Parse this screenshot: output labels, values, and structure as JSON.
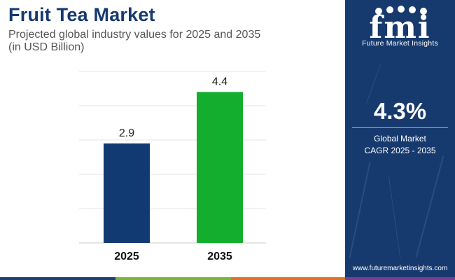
{
  "header": {
    "title": "Fruit Tea Market",
    "subtitle_line1": "Projected global industry values for 2025 and 2035",
    "subtitle_line2": "(in USD Billion)"
  },
  "chart_data": {
    "type": "bar",
    "categories": [
      "2025",
      "2035"
    ],
    "values": [
      2.9,
      4.4
    ],
    "bar_colors": [
      "#123a72",
      "#13ae2e"
    ],
    "ylim": [
      0,
      5
    ],
    "grid": true,
    "title": "Fruit Tea Market",
    "subtitle": "Projected global industry values for 2025 and 2035 (in USD Billion)",
    "xlabel": "",
    "ylabel": ""
  },
  "sidebar": {
    "logo_letters": "fmi",
    "logo_text": "Future Market Insights",
    "cagr_value": "4.3%",
    "cagr_label_line1": "Global Market",
    "cagr_label_line2": "CAGR 2025 - 2035",
    "website": "www.futuremarketinsights.com",
    "background_color": "#173a6e"
  },
  "bottom_stripe_colors": [
    "#1d3f74",
    "#7ab53d",
    "#e1712a",
    "#7e3c8e",
    "#1d3f74"
  ]
}
